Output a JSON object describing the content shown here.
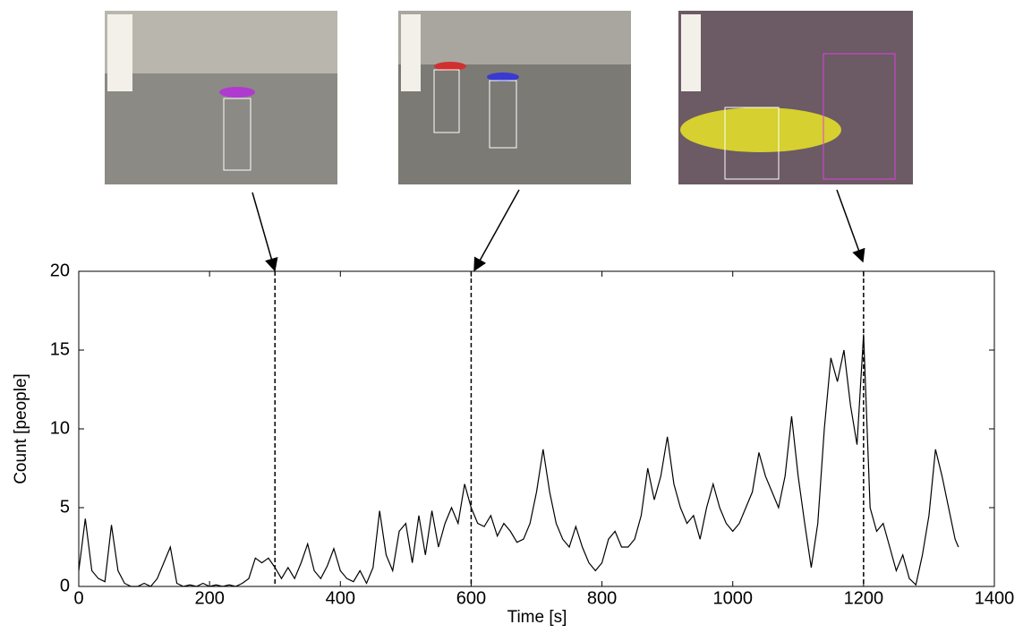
{
  "chart_data": {
    "type": "line",
    "x_label": "Time [s]",
    "y_label": "Count [people]",
    "x": [
      0,
      10,
      20,
      30,
      40,
      50,
      60,
      70,
      80,
      90,
      100,
      110,
      120,
      130,
      140,
      150,
      160,
      170,
      180,
      190,
      200,
      210,
      220,
      230,
      240,
      250,
      260,
      270,
      280,
      290,
      300,
      310,
      320,
      330,
      340,
      350,
      360,
      370,
      380,
      390,
      400,
      410,
      420,
      430,
      440,
      450,
      460,
      470,
      480,
      490,
      500,
      510,
      520,
      530,
      540,
      550,
      560,
      570,
      580,
      590,
      600,
      610,
      620,
      630,
      640,
      650,
      660,
      670,
      680,
      690,
      700,
      710,
      720,
      730,
      740,
      750,
      760,
      770,
      780,
      790,
      800,
      810,
      820,
      830,
      840,
      850,
      860,
      870,
      880,
      890,
      900,
      910,
      920,
      930,
      940,
      950,
      960,
      970,
      980,
      990,
      1000,
      1010,
      1020,
      1030,
      1040,
      1050,
      1060,
      1070,
      1080,
      1090,
      1100,
      1110,
      1120,
      1130,
      1140,
      1150,
      1160,
      1170,
      1180,
      1190,
      1200,
      1210,
      1220,
      1230,
      1240,
      1250,
      1260,
      1270,
      1280,
      1290,
      1300,
      1310,
      1320,
      1330,
      1340,
      1345
    ],
    "series": [
      {
        "color": "#000000",
        "values": [
          1,
          4.3,
          1,
          0.5,
          0.3,
          3.9,
          1,
          0.2,
          0,
          0,
          0.2,
          0,
          0.5,
          1.5,
          2.5,
          0.2,
          0,
          0.1,
          0,
          0.2,
          0,
          0.1,
          0,
          0.1,
          0,
          0.2,
          0.5,
          1.8,
          1.5,
          1.8,
          1.2,
          0.5,
          1.2,
          0.5,
          1.5,
          2.7,
          1,
          0.5,
          1.3,
          2.4,
          1,
          0.5,
          0.3,
          1,
          0.2,
          1.2,
          4.8,
          2,
          1,
          3.5,
          4,
          1.5,
          4.5,
          2,
          4.8,
          2.5,
          4,
          5,
          4,
          6.5,
          5,
          4,
          3.8,
          4.5,
          3.2,
          4,
          3.5,
          2.8,
          3,
          4,
          6,
          8.7,
          6,
          4,
          3,
          2.5,
          3.8,
          2.5,
          1.5,
          1,
          1.5,
          3,
          3.5,
          2.5,
          2.5,
          3,
          4.5,
          7.5,
          5.5,
          7,
          9.5,
          6.5,
          5,
          4,
          4.5,
          3,
          5,
          6.5,
          5,
          4,
          3.5,
          4,
          5,
          6,
          8.5,
          7,
          6,
          5,
          7,
          10.8,
          7,
          4,
          1.2,
          4,
          10,
          14.5,
          13,
          15,
          11.5,
          9,
          16,
          5,
          3.5,
          4,
          2.5,
          1,
          2,
          0.5,
          0.1,
          2,
          4.5,
          8.7,
          7,
          5,
          3,
          2.5
        ]
      }
    ],
    "markers_x": [
      300,
      600,
      1200
    ],
    "xlim": [
      0,
      1400
    ],
    "xticks": [
      0,
      200,
      400,
      600,
      800,
      1000,
      1200,
      1400
    ],
    "ylim": [
      0,
      20
    ],
    "yticks": [
      0,
      5,
      10,
      15,
      20
    ]
  }
}
